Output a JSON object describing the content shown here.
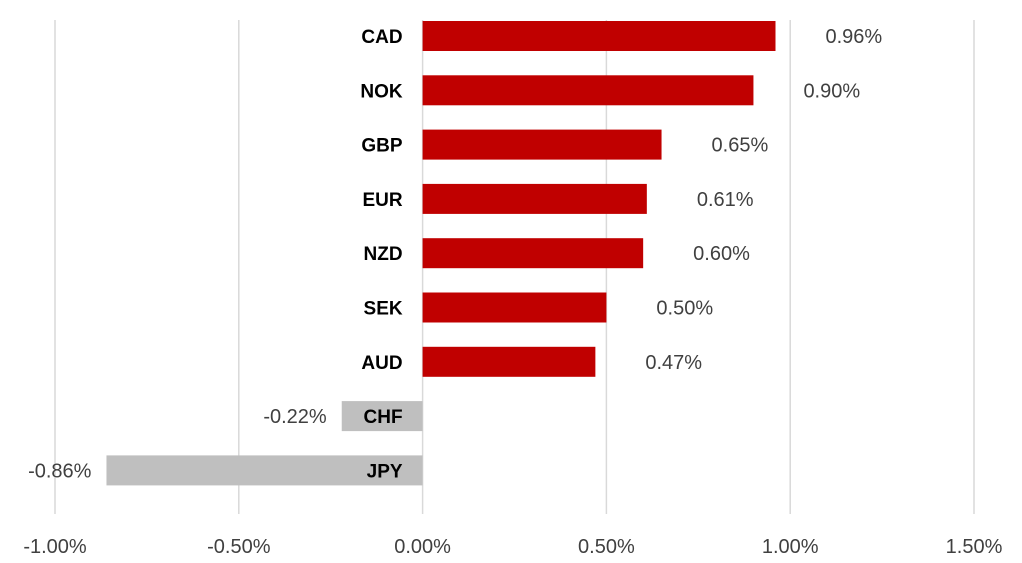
{
  "chart_data": {
    "type": "bar",
    "orientation": "horizontal",
    "categories": [
      "CAD",
      "NOK",
      "GBP",
      "EUR",
      "NZD",
      "SEK",
      "AUD",
      "CHF",
      "JPY"
    ],
    "values": [
      0.96,
      0.9,
      0.65,
      0.61,
      0.6,
      0.5,
      0.47,
      -0.22,
      -0.86
    ],
    "value_labels": [
      "0.96%",
      "0.90%",
      "0.65%",
      "0.61%",
      "0.60%",
      "0.50%",
      "0.47%",
      "-0.22%",
      "-0.86%"
    ],
    "unit": "%",
    "xlim": [
      -1.0,
      1.5
    ],
    "x_ticks": [
      -1.0,
      -0.5,
      0.0,
      0.5,
      1.0,
      1.5
    ],
    "x_tick_labels": [
      "-1.00%",
      "-0.50%",
      "0.00%",
      "0.50%",
      "1.00%",
      "1.50%"
    ],
    "grid": true,
    "legend": "none",
    "title": "",
    "xlabel": "",
    "ylabel": "",
    "colors": {
      "positive": "#c00000",
      "negative": "#bfbfbf",
      "grid": "#d9d9d9"
    }
  }
}
